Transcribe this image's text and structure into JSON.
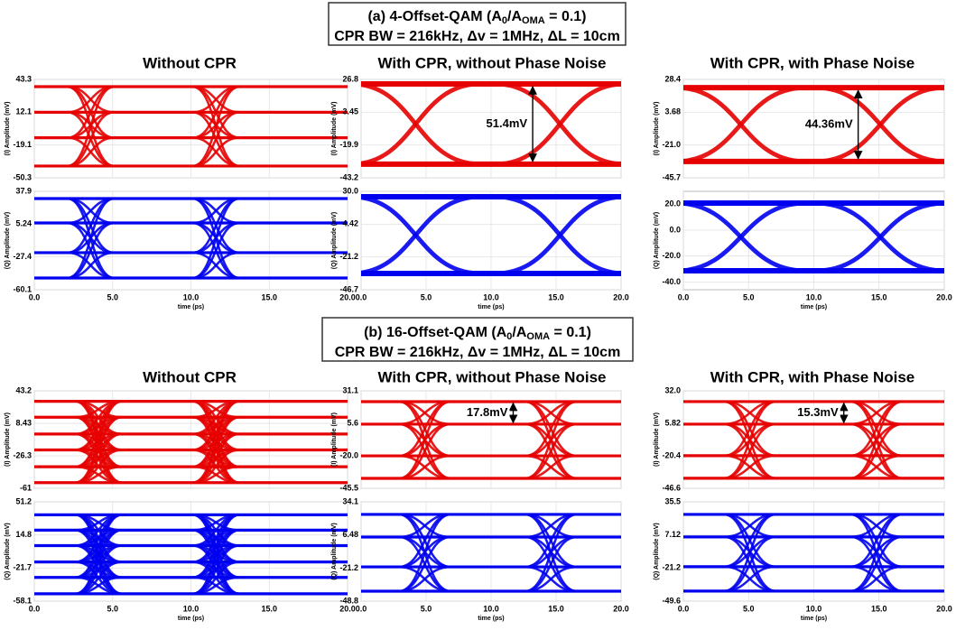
{
  "groups": [
    {
      "title_parts": [
        "(a) 4-Offset-QAM (A",
        "0",
        "/A",
        "OMA",
        " = 0.1)"
      ],
      "subtitle": "CPR BW = 216kHz, Δv = 1MHz, ΔL = 10cm",
      "panels": [
        {
          "title": "Without CPR",
          "crossings": [
            3.6,
            11.6
          ],
          "I": {
            "ylabel": "(I) Amplitude (mV)",
            "color": "#e60000",
            "ylim": [
              -50.3,
              43.3
            ],
            "yticks": [
              43.3,
              12.1,
              -19.1,
              -50.3
            ],
            "levels": [
              36.4,
              12.1,
              -12.2,
              -39.1
            ]
          },
          "Q": {
            "ylabel": "(Q) Amplitude (mV)",
            "color": "#0000f0",
            "ylim": [
              -60.1,
              37.9
            ],
            "yticks": [
              37.9,
              5.24,
              -27.4,
              -60.1
            ],
            "levels": [
              30.7,
              6.4,
              -23.2,
              -48.4
            ]
          }
        },
        {
          "title": "With CPR, without Phase Noise",
          "crossings": [
            4.2,
            15.3
          ],
          "I": {
            "ylabel": "(I) Amplitude (mV)",
            "color": "#e60000",
            "ylim": [
              -43.2,
              26.8
            ],
            "yticks": [
              26.8,
              3.45,
              -19.9,
              -43.2
            ],
            "levels": [
              23.6,
              -33.5
            ],
            "annotation": "51.4mV"
          },
          "Q": {
            "ylabel": "(Q) Amplitude (mV)",
            "color": "#0000f0",
            "ylim": [
              -46.7,
              30
            ],
            "yticks": [
              {
                "value": 30,
                "label": "30.0"
              },
              4.42,
              -21.2,
              -46.7
            ],
            "levels": [
              25.8,
              -34
            ]
          }
        },
        {
          "title": "With CPR, with Phase Noise",
          "crossings": [
            4.4,
            15.1
          ],
          "I": {
            "ylabel": "(I) Amplitude (mV)",
            "color": "#e60000",
            "ylim": [
              -45.7,
              28.4
            ],
            "yticks": [
              28.4,
              3.68,
              {
                "value": -21,
                "label": "-21.0"
              },
              -45.7
            ],
            "levels": [
              22.2,
              -33.4
            ],
            "annotation": "44.36mV"
          },
          "Q": {
            "ylabel": "(Q) Amplitude (mV)",
            "color": "#0000f0",
            "ylim": [
              -46,
              30
            ],
            "yticks": [
              {
                "value": 20,
                "label": "20.0"
              },
              {
                "value": 0,
                "label": "0.0"
              },
              {
                "value": -20,
                "label": "-20.0"
              },
              {
                "value": -40,
                "label": "-40.0"
              }
            ],
            "levels": [
              20.9,
              -31.4
            ]
          }
        }
      ]
    },
    {
      "title_parts": [
        "(b) 16-Offset-QAM (A",
        "0",
        "/A",
        "OMA",
        " = 0.1)"
      ],
      "subtitle": "CPR BW = 216kHz, Δv = 1MHz, ΔL = 10cm",
      "panels": [
        {
          "title": "Without CPR",
          "crossings": [
            4.1,
            11.6
          ],
          "I": {
            "ylabel": "(I) Amplitude (mV)",
            "color": "#e60000",
            "ylim": [
              -61,
              43.2
            ],
            "yticks": [
              43.2,
              8.43,
              -26.3,
              -61
            ],
            "levels": [
              32,
              15,
              -3,
              -20,
              -38,
              -55
            ]
          },
          "Q": {
            "ylabel": "(Q) Amplitude (mV)",
            "color": "#0000f0",
            "ylim": [
              -58.1,
              51.2
            ],
            "yticks": [
              51.2,
              14.8,
              -21.7,
              -58.1
            ],
            "levels": [
              37,
              20,
              3,
              -15,
              -32,
              -50
            ]
          }
        },
        {
          "title": "With CPR, without Phase Noise",
          "crossings": [
            4.9,
            14.6
          ],
          "I": {
            "ylabel": "(I) Amplitude (mV)",
            "color": "#e60000",
            "ylim": [
              -45.5,
              31.1
            ],
            "yticks": [
              31.1,
              5.6,
              {
                "value": -20,
                "label": "-20.0"
              },
              -45.5
            ],
            "levels": [
              22.6,
              4.9,
              -20,
              -37.7
            ],
            "annotation": "17.8mV"
          },
          "Q": {
            "ylabel": "(Q) Amplitude (mV)",
            "color": "#0000f0",
            "ylim": [
              -48.8,
              34.1
            ],
            "yticks": [
              34.1,
              6.48,
              -21.2,
              -48.8
            ],
            "levels": [
              23.6,
              4.7,
              -20.2,
              -40.5
            ]
          }
        },
        {
          "title": "With CPR, with Phase Noise",
          "crossings": [
            5.1,
            14.8
          ],
          "I": {
            "ylabel": "(I) Amplitude (mV)",
            "color": "#e60000",
            "ylim": [
              -46.6,
              32
            ],
            "yticks": [
              {
                "value": 32,
                "label": "32.0"
              },
              5.82,
              -20.4,
              -46.6
            ],
            "levels": [
              23.3,
              5.1,
              -20.3,
              -38.5
            ],
            "annotation": "15.3mV"
          },
          "Q": {
            "ylabel": "(Q) Amplitude (mV)",
            "color": "#0000f0",
            "ylim": [
              -49.6,
              35.5
            ],
            "yticks": [
              35.5,
              7.12,
              -21.2,
              -49.6
            ],
            "levels": [
              24.7,
              5.4,
              -20.1,
              -41
            ]
          }
        }
      ]
    }
  ],
  "xlim": [
    0,
    20
  ],
  "xticks": [
    {
      "value": 0,
      "label": "0.0"
    },
    {
      "value": 5,
      "label": "5.0"
    },
    {
      "value": 10,
      "label": "10.0"
    },
    {
      "value": 15,
      "label": "15.0"
    },
    {
      "value": 20,
      "label": "20.0"
    }
  ],
  "xlabel": "time (ps)"
}
